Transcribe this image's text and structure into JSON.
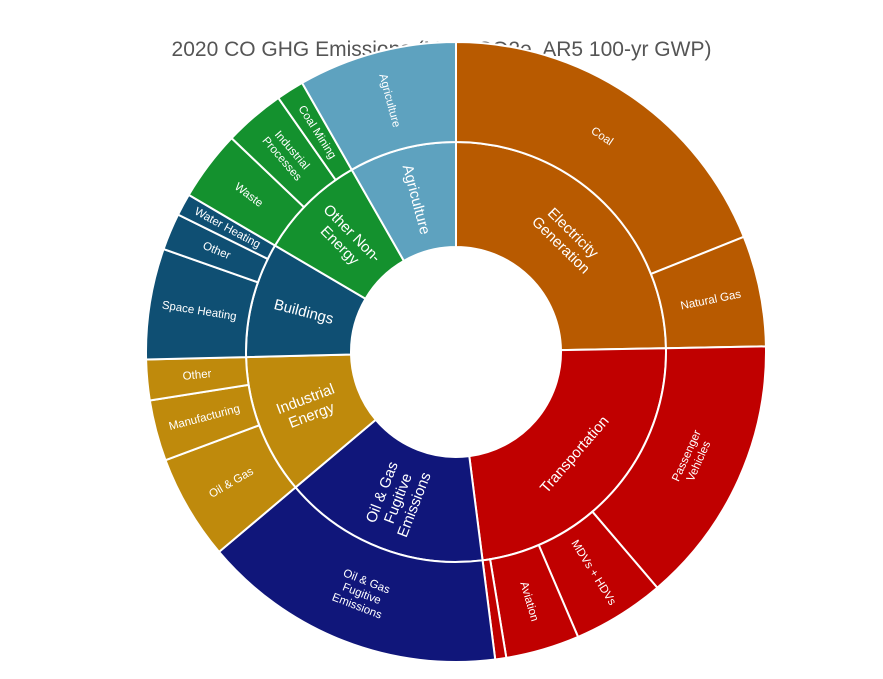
{
  "chart_data": {
    "type": "sunburst",
    "title": "2020 CO GHG Emissions (MMT CO2e, AR5 100-yr GWP)",
    "colors": {
      "Electricity Generation": "#b85a00",
      "Transportation": "#c00000",
      "Oil & Gas Fugitive Emissions": "#10167a",
      "Industrial Energy": "#bf8a0c",
      "Buildings": "#0f4f73",
      "Other Non-Energy": "#14912e",
      "Agriculture": "#5ea2bf"
    },
    "sectors": [
      {
        "name": "Electricity Generation",
        "label_lines": [
          "Electricity",
          "Generation"
        ],
        "children": [
          {
            "name": "Coal",
            "label_lines": [
              "Coal"
            ],
            "value": 19.7
          },
          {
            "name": "Natural Gas",
            "label_lines": [
              "Natural Gas"
            ],
            "value": 6.0
          }
        ]
      },
      {
        "name": "Transportation",
        "label_lines": [
          "Transportation"
        ],
        "children": [
          {
            "name": "Passenger Vehicles",
            "label_lines": [
              "Passenger",
              "Vehicles"
            ],
            "value": 14.6
          },
          {
            "name": "MDVs + HDVs",
            "label_lines": [
              "MDVs + HDVs"
            ],
            "value": 5.0
          },
          {
            "name": "Aviation",
            "label_lines": [
              "Aviation"
            ],
            "value": 4.0
          },
          {
            "name": "",
            "label_lines": [],
            "value": 0.6
          }
        ]
      },
      {
        "name": "Oil & Gas Fugitive Emissions",
        "label_lines": [
          "Oil & Gas",
          "Fugitive",
          "Emissions"
        ],
        "children": [
          {
            "name": "Oil & Gas Fugitive Emissions",
            "label_lines": [
              "Oil & Gas",
              "Fugitive",
              "Emissions"
            ],
            "value": 16.5
          }
        ]
      },
      {
        "name": "Industrial Energy",
        "label_lines": [
          "Industrial",
          "Energy"
        ],
        "children": [
          {
            "name": "Oil & Gas",
            "label_lines": [
              "Oil & Gas"
            ],
            "value": 5.7
          },
          {
            "name": "Manufacturing",
            "label_lines": [
              "Manufacturing"
            ],
            "value": 3.3
          },
          {
            "name": "Other",
            "label_lines": [
              "Other"
            ],
            "value": 2.2
          }
        ]
      },
      {
        "name": "Buildings",
        "label_lines": [
          "Buildings"
        ],
        "children": [
          {
            "name": "Space Heating",
            "label_lines": [
              "Space Heating"
            ],
            "value": 6.0
          },
          {
            "name": "Other",
            "label_lines": [
              "Other"
            ],
            "value": 2.0
          },
          {
            "name": "Water Heating",
            "label_lines": [
              "Water Heating"
            ],
            "value": 1.2
          }
        ]
      },
      {
        "name": "Other Non-Energy",
        "label_lines": [
          "Other Non-",
          "Energy"
        ],
        "children": [
          {
            "name": "Waste",
            "label_lines": [
              "Waste"
            ],
            "value": 3.8
          },
          {
            "name": "Industrial Processes",
            "label_lines": [
              "Industrial",
              "Processes"
            ],
            "value": 3.3
          },
          {
            "name": "Coal Mining",
            "label_lines": [
              "Coal Mining"
            ],
            "value": 1.5
          }
        ]
      },
      {
        "name": "Agriculture",
        "label_lines": [
          "Agriculture"
        ],
        "children": [
          {
            "name": "Agriculture",
            "label_lines": [
              "Agriculture"
            ],
            "value": 8.6
          }
        ]
      }
    ]
  }
}
